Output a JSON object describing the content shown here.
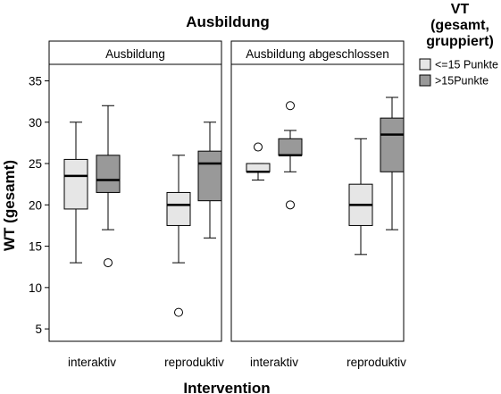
{
  "chart_data": {
    "type": "boxplot",
    "title": "Ausbildung",
    "xlabel": "Intervention",
    "ylabel": "WT (gesamt)",
    "ylim": [
      3.5,
      37
    ],
    "yticks": [
      5,
      10,
      15,
      20,
      25,
      30,
      35
    ],
    "categories": [
      "interaktiv",
      "reproduktiv"
    ],
    "legend": {
      "title_lines": [
        "VT",
        "(gesamt,",
        "gruppiert)"
      ],
      "position": "top-right",
      "items": [
        {
          "label": "<=15 Punkte",
          "color": "#e6e6e6"
        },
        {
          "label": ">15Punkte",
          "color": "#999999"
        }
      ]
    },
    "panels": [
      {
        "title": "Ausbildung",
        "groups": [
          {
            "category": "interaktiv",
            "series": 0,
            "whisker_low": 13,
            "q1": 19.5,
            "median": 23.5,
            "q3": 25.5,
            "whisker_high": 30,
            "outliers": []
          },
          {
            "category": "interaktiv",
            "series": 1,
            "whisker_low": 17,
            "q1": 21.5,
            "median": 23,
            "q3": 26,
            "whisker_high": 32,
            "outliers": [
              13
            ]
          },
          {
            "category": "reproduktiv",
            "series": 0,
            "whisker_low": 13,
            "q1": 17.5,
            "median": 20,
            "q3": 21.5,
            "whisker_high": 26,
            "outliers": [
              7
            ]
          },
          {
            "category": "reproduktiv",
            "series": 1,
            "whisker_low": 16,
            "q1": 20.5,
            "median": 25,
            "q3": 26.5,
            "whisker_high": 30,
            "outliers": []
          }
        ]
      },
      {
        "title": "Ausbildung abgeschlossen",
        "groups": [
          {
            "category": "interaktiv",
            "series": 0,
            "whisker_low": 23,
            "q1": 24,
            "median": 24,
            "q3": 25,
            "whisker_high": 25,
            "outliers": [
              27
            ]
          },
          {
            "category": "interaktiv",
            "series": 1,
            "whisker_low": 24,
            "q1": 26,
            "median": 26,
            "q3": 28,
            "whisker_high": 29,
            "outliers": [
              32,
              20
            ]
          },
          {
            "category": "reproduktiv",
            "series": 0,
            "whisker_low": 14,
            "q1": 17.5,
            "median": 20,
            "q3": 22.5,
            "whisker_high": 28,
            "outliers": []
          },
          {
            "category": "reproduktiv",
            "series": 1,
            "whisker_low": 17,
            "q1": 24,
            "median": 28.5,
            "q3": 30.5,
            "whisker_high": 33,
            "outliers": []
          }
        ]
      }
    ]
  }
}
